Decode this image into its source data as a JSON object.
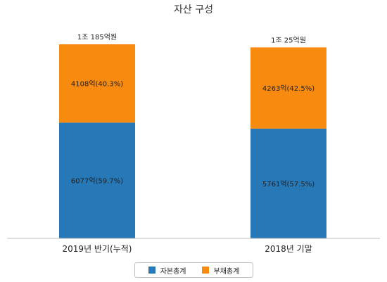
{
  "chart_data": {
    "type": "bar",
    "stacked": true,
    "title": "자산 구성",
    "categories": [
      "2019년 반기(누적)",
      "2018년 기말"
    ],
    "totals": [
      "1조 185억원",
      "1조 25억원"
    ],
    "series": [
      {
        "name": "자본총계",
        "color": "#2778b7",
        "values": [
          6077,
          5761
        ],
        "labels": [
          "6077억(59.7%)",
          "5761억(57.5%)"
        ]
      },
      {
        "name": "부채총계",
        "color": "#f88a10",
        "values": [
          4108,
          4263
        ],
        "labels": [
          "4108억(40.3%)",
          "4263억(42.5%)"
        ]
      }
    ],
    "ylim": [
      0,
      10185
    ],
    "legend": "bottom"
  }
}
